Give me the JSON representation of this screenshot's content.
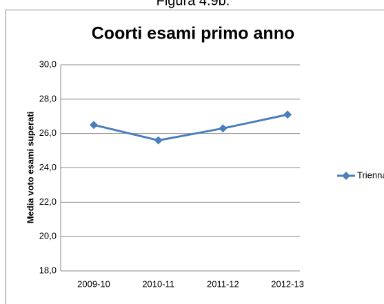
{
  "caption": "Figura 4.9b.",
  "chart_data": {
    "type": "line",
    "title": "Coorti esami primo anno",
    "y_label": "Media voto esami superati",
    "categories": [
      "2009-10",
      "2010-11",
      "2011-12",
      "2012-13"
    ],
    "series": [
      {
        "name": "Triennale",
        "color": "#4a7ebb",
        "values": [
          26.5,
          25.6,
          26.3,
          27.1
        ]
      }
    ],
    "ylim": [
      18,
      30
    ],
    "yticks": [
      {
        "value": 18,
        "label": "18,0"
      },
      {
        "value": 20,
        "label": "20,0"
      },
      {
        "value": 22,
        "label": "22,0"
      },
      {
        "value": 24,
        "label": "24,0"
      },
      {
        "value": 26,
        "label": "26,0"
      },
      {
        "value": 28,
        "label": "28,0"
      },
      {
        "value": 30,
        "label": "30,0"
      }
    ],
    "grid": true,
    "legend": "right"
  }
}
